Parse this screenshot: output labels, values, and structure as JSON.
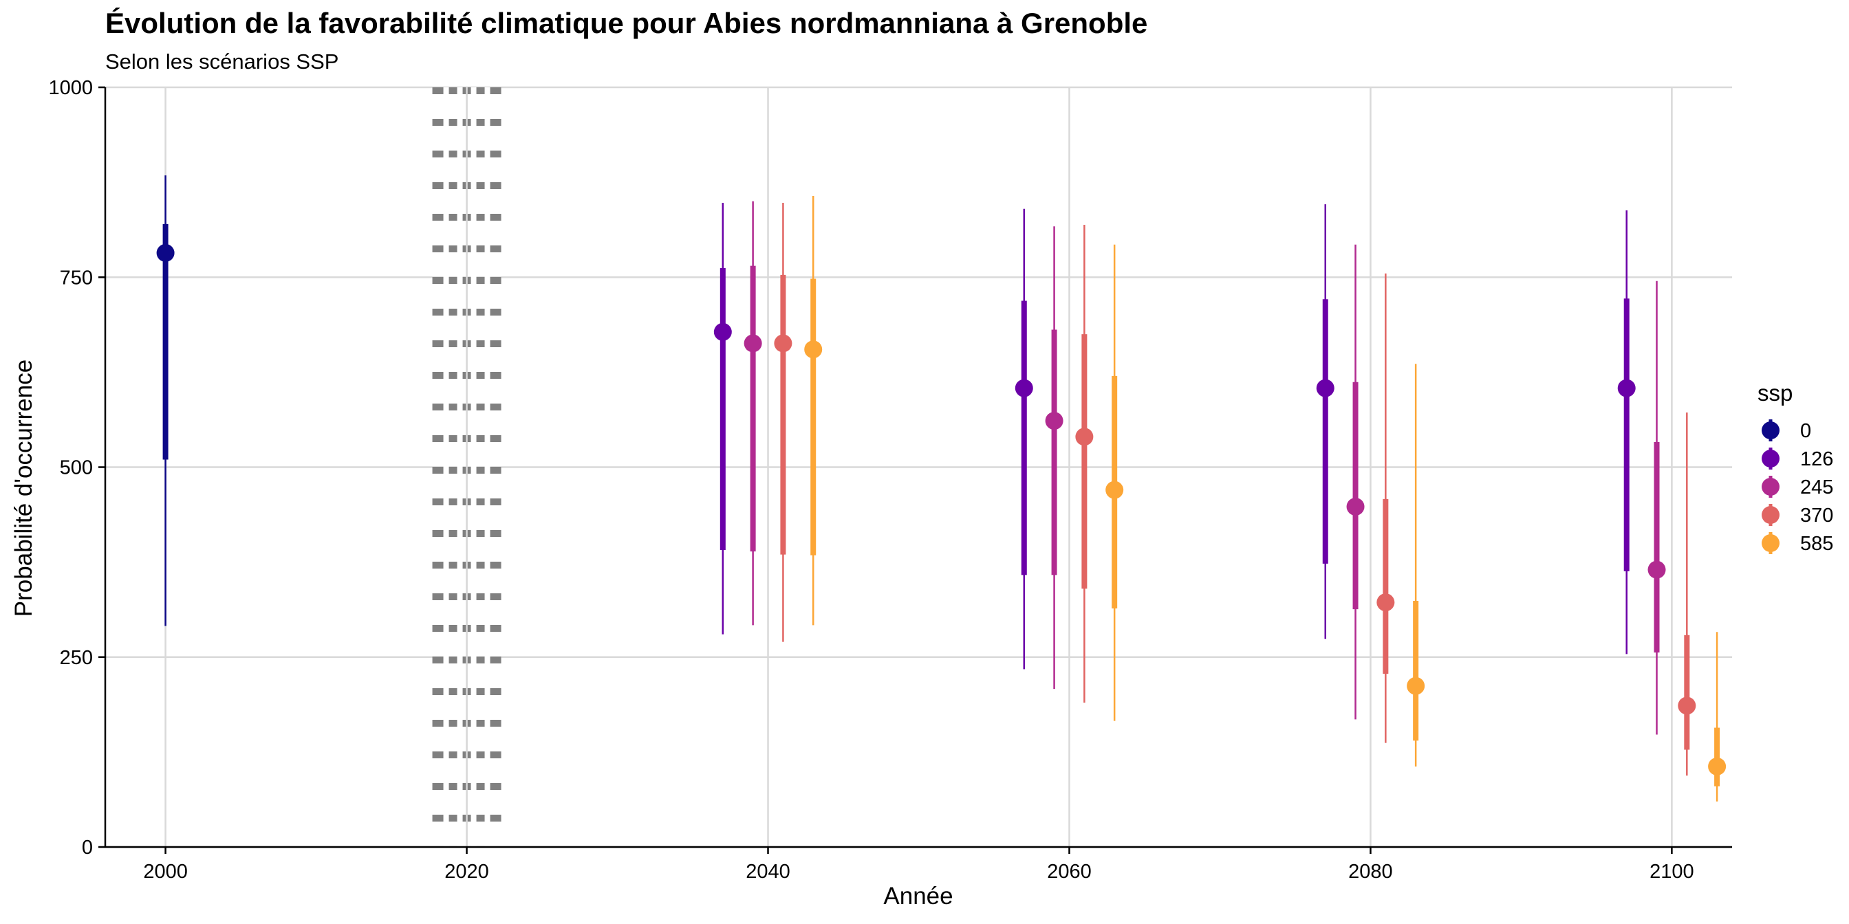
{
  "chart_data": {
    "type": "pointrange",
    "title": "Évolution de la favorabilité climatique pour Abies nordmanniana à Grenoble",
    "subtitle": "Selon les scénarios SSP",
    "xlabel": "Année",
    "ylabel": "Probabilité d'occurrence",
    "xlim": [
      1996,
      2104
    ],
    "ylim": [
      0,
      1000
    ],
    "x_ticks": [
      "2000",
      "2020",
      "2040",
      "2060",
      "2080",
      "2100"
    ],
    "y_ticks": [
      "0",
      "250",
      "500",
      "750",
      "1000"
    ],
    "x_tick_values": [
      2000,
      2020,
      2040,
      2060,
      2080,
      2100
    ],
    "y_tick_values": [
      0,
      250,
      500,
      750,
      1000
    ],
    "grid": true,
    "reference_line": {
      "x": 2020,
      "style": "dotted"
    },
    "legend": {
      "title": "ssp",
      "position": "right"
    },
    "series": [
      {
        "name": "0",
        "color": "#0d0887",
        "points": [
          {
            "x": 2000,
            "y": 782,
            "inner": [
              510,
              820
            ],
            "outer": [
              291,
              884
            ]
          }
        ]
      },
      {
        "name": "126",
        "color": "#6a00a8",
        "points": [
          {
            "x": 2037,
            "y": 678,
            "inner": [
              391,
              762
            ],
            "outer": [
              280,
              848
            ]
          },
          {
            "x": 2057,
            "y": 604,
            "inner": [
              358,
              719
            ],
            "outer": [
              234,
              840
            ]
          },
          {
            "x": 2077,
            "y": 604,
            "inner": [
              373,
              721
            ],
            "outer": [
              274,
              846
            ]
          },
          {
            "x": 2097,
            "y": 604,
            "inner": [
              363,
              722
            ],
            "outer": [
              254,
              838
            ]
          }
        ]
      },
      {
        "name": "245",
        "color": "#b12a90",
        "points": [
          {
            "x": 2039,
            "y": 663,
            "inner": [
              389,
              765
            ],
            "outer": [
              292,
              850
            ]
          },
          {
            "x": 2059,
            "y": 561,
            "inner": [
              358,
              681
            ],
            "outer": [
              208,
              817
            ]
          },
          {
            "x": 2079,
            "y": 448,
            "inner": [
              313,
              612
            ],
            "outer": [
              168,
              793
            ]
          },
          {
            "x": 2099,
            "y": 365,
            "inner": [
              256,
              533
            ],
            "outer": [
              148,
              745
            ]
          }
        ]
      },
      {
        "name": "370",
        "color": "#e16462",
        "points": [
          {
            "x": 2041,
            "y": 663,
            "inner": [
              385,
              753
            ],
            "outer": [
              270,
              848
            ]
          },
          {
            "x": 2061,
            "y": 540,
            "inner": [
              340,
              675
            ],
            "outer": [
              190,
              819
            ]
          },
          {
            "x": 2081,
            "y": 322,
            "inner": [
              228,
              458
            ],
            "outer": [
              137,
              755
            ]
          },
          {
            "x": 2101,
            "y": 186,
            "inner": [
              128,
              279
            ],
            "outer": [
              94,
              572
            ]
          }
        ]
      },
      {
        "name": "585",
        "color": "#fca636",
        "points": [
          {
            "x": 2043,
            "y": 655,
            "inner": [
              384,
              748
            ],
            "outer": [
              292,
              857
            ]
          },
          {
            "x": 2063,
            "y": 470,
            "inner": [
              314,
              620
            ],
            "outer": [
              166,
              793
            ]
          },
          {
            "x": 2083,
            "y": 212,
            "inner": [
              140,
              324
            ],
            "outer": [
              106,
              636
            ]
          },
          {
            "x": 2103,
            "y": 106,
            "inner": [
              80,
              157
            ],
            "outer": [
              60,
              283
            ]
          }
        ]
      }
    ]
  }
}
